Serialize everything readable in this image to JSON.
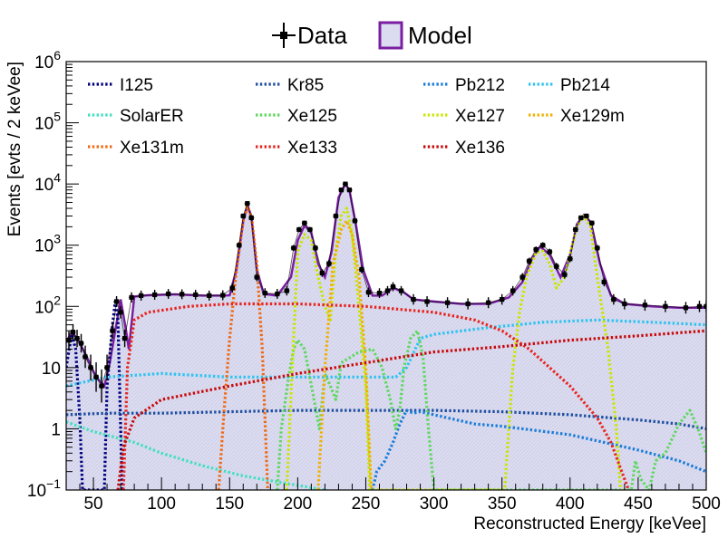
{
  "chart_data": {
    "type": "line",
    "xlabel": "Reconstructed Energy [keVee]",
    "ylabel": "Events [evts / 2 keVee]",
    "xlim": [
      30,
      500
    ],
    "ylim": [
      0.1,
      1000000
    ],
    "yscale": "log",
    "x_ticks": [
      50,
      100,
      150,
      200,
      250,
      300,
      350,
      400,
      450,
      500
    ],
    "x_tick_labels": [
      "50",
      "100",
      "150",
      "200",
      "250",
      "300",
      "350",
      "400",
      "450",
      "500"
    ],
    "y_ticks": [
      0.1,
      1,
      10,
      100,
      1000,
      10000,
      100000,
      1000000
    ],
    "y_tick_labels": [
      {
        "kind": "power",
        "base": "10",
        "exp": "−1"
      },
      {
        "kind": "plain",
        "text": "1"
      },
      {
        "kind": "plain",
        "text": "10"
      },
      {
        "kind": "power",
        "base": "10",
        "exp": "2"
      },
      {
        "kind": "power",
        "base": "10",
        "exp": "3"
      },
      {
        "kind": "power",
        "base": "10",
        "exp": "4"
      },
      {
        "kind": "power",
        "base": "10",
        "exp": "5"
      },
      {
        "kind": "power",
        "base": "10",
        "exp": "6"
      }
    ],
    "top_legend": [
      {
        "label": "Data",
        "marker": "errorbar-point",
        "color": "#000000"
      },
      {
        "label": "Model",
        "marker": "filled-box",
        "color": "#7a1fa2",
        "fill": "#dcdcf0"
      }
    ],
    "model": {
      "name": "Model",
      "color": "#7a1fa2",
      "fill": "#dcdcf0",
      "points": [
        [
          30,
          26
        ],
        [
          34,
          38
        ],
        [
          38,
          30
        ],
        [
          44,
          17
        ],
        [
          52,
          7
        ],
        [
          58,
          5
        ],
        [
          62,
          12
        ],
        [
          66,
          40
        ],
        [
          70,
          130
        ],
        [
          74,
          40
        ],
        [
          76,
          20
        ],
        [
          80,
          145
        ],
        [
          90,
          152
        ],
        [
          110,
          157
        ],
        [
          130,
          150
        ],
        [
          145,
          150
        ],
        [
          150,
          152
        ],
        [
          155,
          400
        ],
        [
          160,
          2500
        ],
        [
          163,
          4500
        ],
        [
          166,
          3000
        ],
        [
          170,
          400
        ],
        [
          175,
          160
        ],
        [
          185,
          150
        ],
        [
          195,
          300
        ],
        [
          200,
          1200
        ],
        [
          205,
          2100
        ],
        [
          210,
          1600
        ],
        [
          215,
          500
        ],
        [
          220,
          300
        ],
        [
          225,
          800
        ],
        [
          230,
          6000
        ],
        [
          235,
          10000
        ],
        [
          238,
          8000
        ],
        [
          243,
          2000
        ],
        [
          248,
          400
        ],
        [
          255,
          150
        ],
        [
          262,
          150
        ],
        [
          270,
          200
        ],
        [
          278,
          170
        ],
        [
          285,
          130
        ],
        [
          300,
          120
        ],
        [
          320,
          110
        ],
        [
          340,
          110
        ],
        [
          355,
          140
        ],
        [
          365,
          250
        ],
        [
          372,
          600
        ],
        [
          378,
          950
        ],
        [
          385,
          700
        ],
        [
          393,
          300
        ],
        [
          400,
          700
        ],
        [
          405,
          2200
        ],
        [
          410,
          3100
        ],
        [
          415,
          2400
        ],
        [
          422,
          500
        ],
        [
          430,
          150
        ],
        [
          440,
          110
        ],
        [
          460,
          100
        ],
        [
          480,
          95
        ],
        [
          500,
          95
        ]
      ]
    },
    "data": {
      "name": "Data",
      "color": "#000000",
      "points": [
        [
          32,
          28
        ],
        [
          35,
          38
        ],
        [
          38,
          30
        ],
        [
          41,
          25
        ],
        [
          44,
          15
        ],
        [
          48,
          10
        ],
        [
          52,
          7
        ],
        [
          56,
          5
        ],
        [
          60,
          10
        ],
        [
          64,
          40
        ],
        [
          67,
          120
        ],
        [
          70,
          80
        ],
        [
          73,
          30
        ],
        [
          78,
          140
        ],
        [
          85,
          150
        ],
        [
          95,
          155
        ],
        [
          105,
          160
        ],
        [
          115,
          158
        ],
        [
          125,
          155
        ],
        [
          135,
          150
        ],
        [
          145,
          152
        ],
        [
          152,
          200
        ],
        [
          157,
          1000
        ],
        [
          160,
          3000
        ],
        [
          163,
          4800
        ],
        [
          166,
          2800
        ],
        [
          170,
          300
        ],
        [
          176,
          165
        ],
        [
          185,
          160
        ],
        [
          192,
          180
        ],
        [
          197,
          900
        ],
        [
          201,
          1800
        ],
        [
          205,
          2300
        ],
        [
          209,
          1800
        ],
        [
          213,
          900
        ],
        [
          218,
          350
        ],
        [
          223,
          500
        ],
        [
          228,
          3000
        ],
        [
          232,
          8000
        ],
        [
          235,
          10000
        ],
        [
          238,
          8000
        ],
        [
          242,
          2500
        ],
        [
          247,
          400
        ],
        [
          252,
          170
        ],
        [
          260,
          165
        ],
        [
          266,
          180
        ],
        [
          270,
          210
        ],
        [
          276,
          180
        ],
        [
          285,
          130
        ],
        [
          295,
          120
        ],
        [
          310,
          115
        ],
        [
          325,
          110
        ],
        [
          340,
          115
        ],
        [
          350,
          130
        ],
        [
          358,
          180
        ],
        [
          365,
          300
        ],
        [
          370,
          550
        ],
        [
          375,
          850
        ],
        [
          380,
          1000
        ],
        [
          385,
          780
        ],
        [
          390,
          450
        ],
        [
          396,
          330
        ],
        [
          400,
          600
        ],
        [
          404,
          1800
        ],
        [
          408,
          2800
        ],
        [
          412,
          3000
        ],
        [
          416,
          2300
        ],
        [
          420,
          900
        ],
        [
          425,
          250
        ],
        [
          432,
          130
        ],
        [
          440,
          110
        ],
        [
          455,
          105
        ],
        [
          470,
          100
        ],
        [
          485,
          95
        ],
        [
          495,
          100
        ],
        [
          500,
          100
        ]
      ]
    },
    "series": [
      {
        "name": "I125",
        "color": "#000080",
        "points": [
          [
            30,
            10
          ],
          [
            34,
            35
          ],
          [
            37,
            20
          ],
          [
            40,
            1.5
          ],
          [
            42,
            0.1
          ],
          [
            58,
            0.1
          ],
          [
            60,
            5
          ],
          [
            64,
            50
          ],
          [
            66,
            120
          ],
          [
            68,
            60
          ],
          [
            70,
            1
          ],
          [
            71,
            0.1
          ]
        ]
      },
      {
        "name": "Kr85",
        "color": "#1e4fa0",
        "points": [
          [
            30,
            1.7
          ],
          [
            60,
            1.8
          ],
          [
            100,
            1.8
          ],
          [
            150,
            1.9
          ],
          [
            200,
            2
          ],
          [
            250,
            2
          ],
          [
            300,
            2
          ],
          [
            350,
            1.9
          ],
          [
            400,
            1.7
          ],
          [
            450,
            1.4
          ],
          [
            480,
            1.2
          ],
          [
            500,
            1
          ]
        ]
      },
      {
        "name": "Pb212",
        "color": "#1a7dd8",
        "points": [
          [
            255,
            0.1
          ],
          [
            258,
            0.2
          ],
          [
            264,
            0.3
          ],
          [
            270,
            0.6
          ],
          [
            275,
            1.2
          ],
          [
            280,
            2
          ],
          [
            285,
            1.8
          ],
          [
            290,
            1.9
          ],
          [
            330,
            1.2
          ],
          [
            350,
            1.1
          ],
          [
            400,
            0.8
          ],
          [
            450,
            0.45
          ],
          [
            480,
            0.3
          ],
          [
            500,
            0.2
          ]
        ]
      },
      {
        "name": "Pb214",
        "color": "#2ec4f0",
        "points": [
          [
            30,
            5
          ],
          [
            60,
            7
          ],
          [
            100,
            8
          ],
          [
            150,
            7
          ],
          [
            200,
            7
          ],
          [
            250,
            7
          ],
          [
            272,
            7
          ],
          [
            280,
            10
          ],
          [
            290,
            30
          ],
          [
            300,
            35
          ],
          [
            340,
            45
          ],
          [
            380,
            55
          ],
          [
            420,
            60
          ],
          [
            460,
            55
          ],
          [
            500,
            50
          ]
        ]
      },
      {
        "name": "SolarER",
        "color": "#40e0c0",
        "points": [
          [
            30,
            1.3
          ],
          [
            50,
            0.9
          ],
          [
            80,
            0.6
          ],
          [
            100,
            0.4
          ],
          [
            130,
            0.25
          ],
          [
            160,
            0.17
          ],
          [
            190,
            0.13
          ],
          [
            220,
            0.1
          ],
          [
            240,
            0.07
          ]
        ]
      },
      {
        "name": "Xe125",
        "color": "#5ed85e",
        "points": [
          [
            185,
            0.1
          ],
          [
            188,
            1
          ],
          [
            193,
            6
          ],
          [
            197,
            20
          ],
          [
            200,
            28
          ],
          [
            205,
            20
          ],
          [
            212,
            3
          ],
          [
            216,
            1
          ],
          [
            220,
            8
          ],
          [
            224,
            5
          ],
          [
            228,
            3
          ],
          [
            232,
            12
          ],
          [
            245,
            18
          ],
          [
            255,
            20
          ],
          [
            262,
            10
          ],
          [
            268,
            3
          ],
          [
            272,
            1
          ],
          [
            275,
            2
          ],
          [
            278,
            10
          ],
          [
            283,
            30
          ],
          [
            288,
            40
          ],
          [
            292,
            15
          ],
          [
            296,
            1
          ],
          [
            300,
            0.1
          ],
          [
            445,
            0.1
          ],
          [
            448,
            0.3
          ],
          [
            452,
            0.15
          ],
          [
            458,
            0.1
          ],
          [
            463,
            0.3
          ],
          [
            470,
            0.4
          ],
          [
            480,
            1.2
          ],
          [
            488,
            2
          ],
          [
            494,
            1
          ],
          [
            500,
            0.4
          ]
        ]
      },
      {
        "name": "Xe127",
        "color": "#c8e600",
        "points": [
          [
            192,
            0.1
          ],
          [
            196,
            10
          ],
          [
            200,
            800
          ],
          [
            205,
            1500
          ],
          [
            210,
            1200
          ],
          [
            215,
            300
          ],
          [
            220,
            100
          ],
          [
            224,
            60
          ],
          [
            228,
            800
          ],
          [
            232,
            3000
          ],
          [
            236,
            4000
          ],
          [
            240,
            1500
          ],
          [
            245,
            100
          ],
          [
            250,
            5
          ],
          [
            253,
            0.1
          ],
          [
            352,
            0.1
          ],
          [
            358,
            10
          ],
          [
            363,
            80
          ],
          [
            368,
            300
          ],
          [
            375,
            750
          ],
          [
            380,
            800
          ],
          [
            385,
            500
          ],
          [
            390,
            200
          ],
          [
            396,
            300
          ],
          [
            400,
            700
          ],
          [
            405,
            2000
          ],
          [
            410,
            3000
          ],
          [
            415,
            2000
          ],
          [
            420,
            300
          ],
          [
            428,
            20
          ],
          [
            434,
            1
          ],
          [
            437,
            0.1
          ]
        ]
      },
      {
        "name": "Xe129m",
        "color": "#f0b000",
        "points": [
          [
            215,
            0.1
          ],
          [
            220,
            10
          ],
          [
            226,
            500
          ],
          [
            232,
            1800
          ],
          [
            236,
            2500
          ],
          [
            240,
            1500
          ],
          [
            245,
            300
          ],
          [
            250,
            10
          ],
          [
            254,
            0.1
          ]
        ]
      },
      {
        "name": "Xe131m",
        "color": "#f06a14",
        "points": [
          [
            142,
            0.1
          ],
          [
            146,
            2
          ],
          [
            150,
            30
          ],
          [
            155,
            400
          ],
          [
            160,
            2500
          ],
          [
            163,
            4200
          ],
          [
            166,
            3000
          ],
          [
            170,
            500
          ],
          [
            174,
            20
          ],
          [
            178,
            0.1
          ]
        ]
      },
      {
        "name": "Xe133",
        "color": "#e8251e",
        "points": [
          [
            72,
            0.1
          ],
          [
            75,
            10
          ],
          [
            80,
            60
          ],
          [
            90,
            80
          ],
          [
            120,
            100
          ],
          [
            150,
            110
          ],
          [
            200,
            110
          ],
          [
            250,
            100
          ],
          [
            300,
            80
          ],
          [
            330,
            60
          ],
          [
            350,
            40
          ],
          [
            370,
            20
          ],
          [
            385,
            10
          ],
          [
            400,
            5
          ],
          [
            420,
            1.5
          ],
          [
            430,
            0.6
          ],
          [
            440,
            0.15
          ],
          [
            443,
            0.1
          ]
        ]
      },
      {
        "name": "Xe136",
        "color": "#c80a0a",
        "points": [
          [
            68,
            0.1
          ],
          [
            72,
            0.5
          ],
          [
            80,
            1.5
          ],
          [
            100,
            3
          ],
          [
            150,
            5
          ],
          [
            200,
            8
          ],
          [
            250,
            12
          ],
          [
            300,
            18
          ],
          [
            350,
            22
          ],
          [
            400,
            28
          ],
          [
            450,
            33
          ],
          [
            500,
            40
          ]
        ]
      }
    ]
  }
}
